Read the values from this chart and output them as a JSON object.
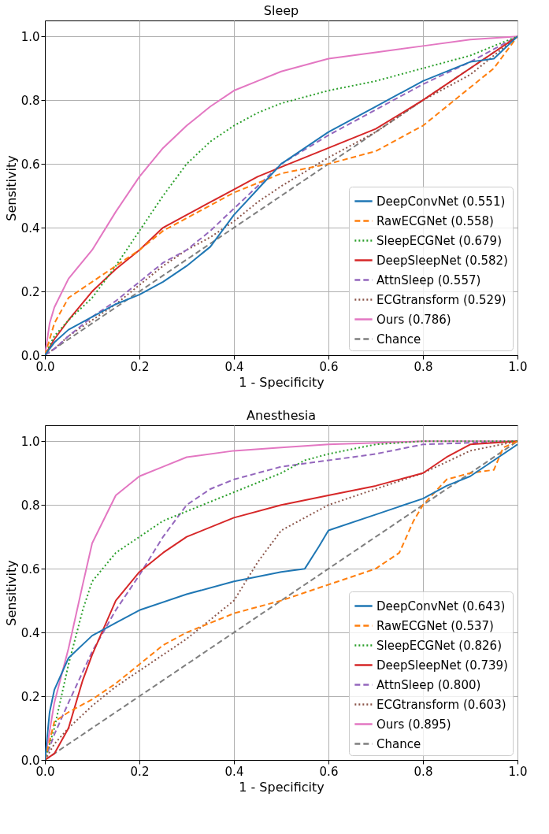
{
  "chart_data": [
    {
      "type": "line",
      "title": "Sleep",
      "xlabel": "1 - Specificity",
      "ylabel": "Sensitivity",
      "xlim": [
        0,
        1
      ],
      "ylim": [
        0,
        1.05
      ],
      "xticks": [
        {
          "value": 0,
          "label": "0.0"
        },
        {
          "value": 0.2,
          "label": "0.2"
        },
        {
          "value": 0.4,
          "label": "0.4"
        },
        {
          "value": 0.6,
          "label": "0.6"
        },
        {
          "value": 0.8,
          "label": "0.8"
        },
        {
          "value": 1,
          "label": "1.0"
        }
      ],
      "yticks": [
        {
          "value": 0,
          "label": "0.0"
        },
        {
          "value": 0.2,
          "label": "0.2"
        },
        {
          "value": 0.4,
          "label": "0.4"
        },
        {
          "value": 0.6,
          "label": "0.6"
        },
        {
          "value": 0.8,
          "label": "0.8"
        },
        {
          "value": 1,
          "label": "1.0"
        }
      ],
      "grid": true,
      "legend": "bottom right",
      "marker": "none",
      "series": [
        {
          "name": "DeepConvNet (0.551)",
          "color": "#1f77b4",
          "line_style": "solid",
          "x": [
            0,
            0.02,
            0.05,
            0.1,
            0.15,
            0.2,
            0.25,
            0.3,
            0.35,
            0.4,
            0.45,
            0.5,
            0.6,
            0.7,
            0.8,
            0.9,
            0.95,
            1
          ],
          "values": [
            0,
            0.04,
            0.08,
            0.12,
            0.16,
            0.19,
            0.23,
            0.28,
            0.34,
            0.44,
            0.52,
            0.6,
            0.7,
            0.78,
            0.86,
            0.92,
            0.93,
            1
          ]
        },
        {
          "name": "RawECGNet (0.558)",
          "color": "#ff7f0e",
          "line_style": "dashed",
          "x": [
            0,
            0.02,
            0.05,
            0.1,
            0.15,
            0.2,
            0.25,
            0.3,
            0.35,
            0.4,
            0.45,
            0.5,
            0.6,
            0.7,
            0.8,
            0.9,
            0.95,
            1
          ],
          "values": [
            0,
            0.1,
            0.18,
            0.23,
            0.28,
            0.33,
            0.39,
            0.43,
            0.47,
            0.51,
            0.54,
            0.57,
            0.6,
            0.64,
            0.72,
            0.84,
            0.9,
            1
          ]
        },
        {
          "name": "SleepECGNet (0.679)",
          "color": "#2ca02c",
          "line_style": "dotted",
          "x": [
            0,
            0.02,
            0.05,
            0.1,
            0.15,
            0.2,
            0.25,
            0.3,
            0.35,
            0.4,
            0.45,
            0.5,
            0.6,
            0.7,
            0.8,
            0.9,
            1
          ],
          "values": [
            0,
            0.06,
            0.11,
            0.18,
            0.28,
            0.39,
            0.5,
            0.6,
            0.67,
            0.72,
            0.76,
            0.79,
            0.83,
            0.86,
            0.9,
            0.94,
            1
          ]
        },
        {
          "name": "DeepSleepNet (0.582)",
          "color": "#d62728",
          "line_style": "solid",
          "x": [
            0,
            0.02,
            0.05,
            0.1,
            0.15,
            0.2,
            0.25,
            0.3,
            0.35,
            0.4,
            0.45,
            0.5,
            0.6,
            0.7,
            0.8,
            0.9,
            1
          ],
          "values": [
            0,
            0.05,
            0.11,
            0.2,
            0.27,
            0.33,
            0.4,
            0.44,
            0.48,
            0.52,
            0.56,
            0.59,
            0.65,
            0.71,
            0.8,
            0.9,
            1
          ]
        },
        {
          "name": "AttnSleep (0.557)",
          "color": "#9467bd",
          "line_style": "dashed",
          "x": [
            0,
            0.02,
            0.05,
            0.1,
            0.15,
            0.2,
            0.25,
            0.3,
            0.35,
            0.4,
            0.45,
            0.5,
            0.6,
            0.7,
            0.8,
            0.9,
            1
          ],
          "values": [
            0,
            0.02,
            0.06,
            0.12,
            0.17,
            0.23,
            0.29,
            0.33,
            0.39,
            0.46,
            0.53,
            0.6,
            0.69,
            0.77,
            0.85,
            0.92,
            1
          ]
        },
        {
          "name": "ECGtransform (0.529)",
          "color": "#8c564b",
          "line_style": "dotted",
          "x": [
            0,
            0.02,
            0.05,
            0.1,
            0.15,
            0.2,
            0.25,
            0.3,
            0.35,
            0.4,
            0.45,
            0.5,
            0.6,
            0.7,
            0.8,
            0.9,
            1
          ],
          "values": [
            0,
            0.02,
            0.06,
            0.11,
            0.16,
            0.22,
            0.28,
            0.33,
            0.37,
            0.42,
            0.48,
            0.53,
            0.62,
            0.7,
            0.8,
            0.88,
            1
          ]
        },
        {
          "name": "Ours (0.786)",
          "color": "#e377c2",
          "line_style": "solid",
          "x": [
            0,
            0.01,
            0.02,
            0.05,
            0.1,
            0.15,
            0.2,
            0.25,
            0.3,
            0.35,
            0.4,
            0.45,
            0.5,
            0.6,
            0.7,
            0.8,
            0.9,
            1
          ],
          "values": [
            0,
            0.1,
            0.15,
            0.24,
            0.33,
            0.45,
            0.56,
            0.65,
            0.72,
            0.78,
            0.83,
            0.86,
            0.89,
            0.93,
            0.95,
            0.97,
            0.99,
            1
          ]
        },
        {
          "name": "Chance",
          "color": "#7f7f7f",
          "line_style": "dashed",
          "x": [
            0,
            1
          ],
          "values": [
            0,
            1
          ]
        }
      ]
    },
    {
      "type": "line",
      "title": "Anesthesia",
      "xlabel": "1 - Specificity",
      "ylabel": "Sensitivity",
      "xlim": [
        0,
        1
      ],
      "ylim": [
        0,
        1.05
      ],
      "xticks": [
        {
          "value": 0,
          "label": "0.0"
        },
        {
          "value": 0.2,
          "label": "0.2"
        },
        {
          "value": 0.4,
          "label": "0.4"
        },
        {
          "value": 0.6,
          "label": "0.6"
        },
        {
          "value": 0.8,
          "label": "0.8"
        },
        {
          "value": 1,
          "label": "1.0"
        }
      ],
      "yticks": [
        {
          "value": 0,
          "label": "0.0"
        },
        {
          "value": 0.2,
          "label": "0.2"
        },
        {
          "value": 0.4,
          "label": "0.4"
        },
        {
          "value": 0.6,
          "label": "0.6"
        },
        {
          "value": 0.8,
          "label": "0.8"
        },
        {
          "value": 1,
          "label": "1.0"
        }
      ],
      "grid": true,
      "legend": "bottom right",
      "marker": "none",
      "series": [
        {
          "name": "DeepConvNet (0.643)",
          "color": "#1f77b4",
          "line_style": "solid",
          "x": [
            0,
            0.01,
            0.02,
            0.05,
            0.1,
            0.15,
            0.2,
            0.3,
            0.4,
            0.5,
            0.55,
            0.58,
            0.6,
            0.7,
            0.8,
            0.85,
            0.9,
            1
          ],
          "values": [
            0,
            0.15,
            0.22,
            0.32,
            0.39,
            0.43,
            0.47,
            0.52,
            0.56,
            0.59,
            0.6,
            0.67,
            0.72,
            0.77,
            0.82,
            0.86,
            0.89,
            0.99
          ]
        },
        {
          "name": "RawECGNet (0.537)",
          "color": "#ff7f0e",
          "line_style": "dashed",
          "x": [
            0,
            0.02,
            0.05,
            0.1,
            0.15,
            0.2,
            0.25,
            0.3,
            0.4,
            0.5,
            0.6,
            0.7,
            0.75,
            0.78,
            0.8,
            0.85,
            0.9,
            0.95,
            0.97,
            1
          ],
          "values": [
            0,
            0.12,
            0.15,
            0.19,
            0.24,
            0.3,
            0.36,
            0.4,
            0.46,
            0.5,
            0.55,
            0.6,
            0.65,
            0.75,
            0.8,
            0.88,
            0.9,
            0.91,
            0.98,
            1
          ]
        },
        {
          "name": "SleepECGNet (0.826)",
          "color": "#2ca02c",
          "line_style": "dotted",
          "x": [
            0,
            0.02,
            0.05,
            0.08,
            0.1,
            0.15,
            0.2,
            0.25,
            0.3,
            0.4,
            0.5,
            0.55,
            0.6,
            0.7,
            0.8,
            1
          ],
          "values": [
            0,
            0.1,
            0.3,
            0.47,
            0.56,
            0.65,
            0.7,
            0.75,
            0.78,
            0.84,
            0.9,
            0.94,
            0.96,
            0.99,
            1,
            1
          ]
        },
        {
          "name": "DeepSleepNet (0.739)",
          "color": "#d62728",
          "line_style": "solid",
          "x": [
            0,
            0.02,
            0.05,
            0.08,
            0.1,
            0.15,
            0.2,
            0.25,
            0.3,
            0.4,
            0.5,
            0.6,
            0.7,
            0.8,
            0.85,
            0.9,
            1
          ],
          "values": [
            0,
            0.02,
            0.1,
            0.25,
            0.33,
            0.5,
            0.59,
            0.65,
            0.7,
            0.76,
            0.8,
            0.83,
            0.86,
            0.9,
            0.95,
            0.99,
            1
          ]
        },
        {
          "name": "AttnSleep (0.800)",
          "color": "#9467bd",
          "line_style": "dashed",
          "x": [
            0,
            0.02,
            0.05,
            0.1,
            0.15,
            0.2,
            0.25,
            0.3,
            0.35,
            0.4,
            0.5,
            0.6,
            0.7,
            0.8,
            1
          ],
          "values": [
            0,
            0.08,
            0.18,
            0.34,
            0.47,
            0.58,
            0.7,
            0.8,
            0.85,
            0.88,
            0.92,
            0.94,
            0.96,
            0.99,
            1
          ]
        },
        {
          "name": "ECGtransform (0.603)",
          "color": "#8c564b",
          "line_style": "dotted",
          "x": [
            0,
            0.02,
            0.05,
            0.1,
            0.15,
            0.2,
            0.3,
            0.4,
            0.45,
            0.5,
            0.6,
            0.7,
            0.8,
            0.9,
            1
          ],
          "values": [
            0,
            0.05,
            0.1,
            0.17,
            0.23,
            0.28,
            0.38,
            0.5,
            0.62,
            0.72,
            0.8,
            0.85,
            0.9,
            0.97,
            1
          ]
        },
        {
          "name": "Ours (0.895)",
          "color": "#e377c2",
          "line_style": "solid",
          "x": [
            0,
            0.02,
            0.05,
            0.08,
            0.1,
            0.15,
            0.2,
            0.25,
            0.3,
            0.4,
            0.5,
            0.6,
            0.8,
            1
          ],
          "values": [
            0,
            0.18,
            0.35,
            0.55,
            0.68,
            0.83,
            0.89,
            0.92,
            0.95,
            0.97,
            0.98,
            0.99,
            1,
            1
          ]
        },
        {
          "name": "Chance",
          "color": "#7f7f7f",
          "line_style": "dashed",
          "x": [
            0,
            1
          ],
          "values": [
            0,
            1
          ]
        }
      ]
    }
  ]
}
